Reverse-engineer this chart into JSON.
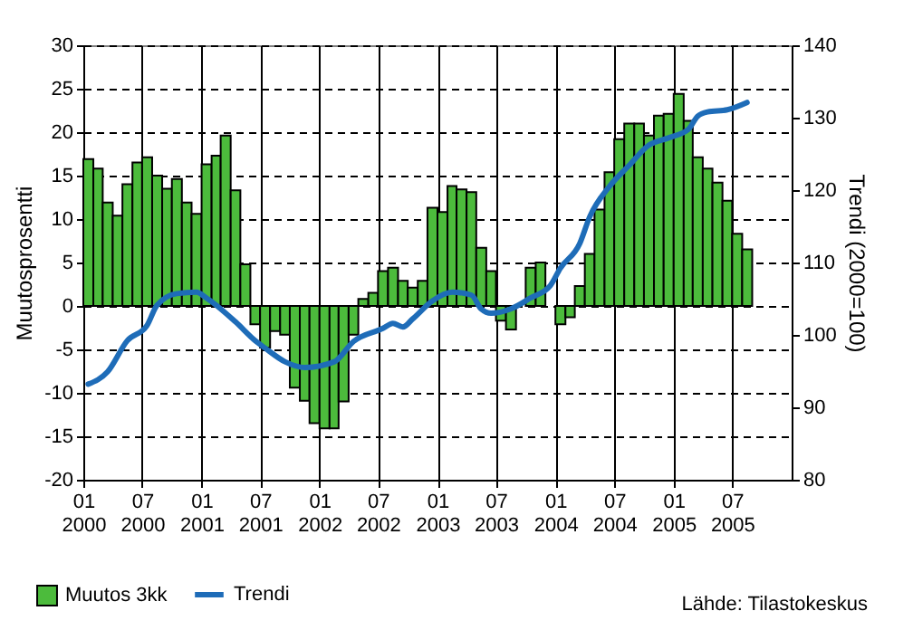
{
  "chart_data": {
    "type": "bar",
    "ylabel": "Muutosprosentti",
    "y2label": "Trendi (2000=100)",
    "annotations": [
      "Lähde: Tilastokeskus"
    ],
    "x": [
      "2000-01",
      "2000-02",
      "2000-03",
      "2000-04",
      "2000-05",
      "2000-06",
      "2000-07",
      "2000-08",
      "2000-09",
      "2000-10",
      "2000-11",
      "2000-12",
      "2001-01",
      "2001-02",
      "2001-03",
      "2001-04",
      "2001-05",
      "2001-06",
      "2001-07",
      "2001-08",
      "2001-09",
      "2001-10",
      "2001-11",
      "2001-12",
      "2002-01",
      "2002-02",
      "2002-03",
      "2002-04",
      "2002-05",
      "2002-06",
      "2002-07",
      "2002-08",
      "2002-09",
      "2002-10",
      "2002-11",
      "2002-12",
      "2003-01",
      "2003-02",
      "2003-03",
      "2003-04",
      "2003-05",
      "2003-06",
      "2003-07",
      "2003-08",
      "2003-09",
      "2003-10",
      "2003-11",
      "2003-12",
      "2004-01",
      "2004-02",
      "2004-03",
      "2004-04",
      "2004-05",
      "2004-06",
      "2004-07",
      "2004-08",
      "2004-09",
      "2004-10",
      "2004-11",
      "2004-12",
      "2005-01",
      "2005-02",
      "2005-03",
      "2005-04",
      "2005-05",
      "2005-06",
      "2005-07",
      "2005-08"
    ],
    "series": [
      {
        "name": "Muutos 3kk",
        "color": "#4cbb3c",
        "values": [
          16.9,
          15.8,
          11.9,
          10.4,
          14.0,
          16.5,
          17.1,
          15.0,
          13.5,
          14.6,
          11.9,
          10.6,
          16.3,
          17.3,
          19.6,
          13.3,
          4.8,
          -2.1,
          -4.8,
          -2.9,
          -3.3,
          -9.4,
          -10.9,
          -13.5,
          -14.1,
          -14.1,
          -11.0,
          -3.3,
          0.8,
          1.5,
          4.0,
          4.4,
          2.9,
          2.1,
          2.9,
          11.3,
          10.8,
          13.8,
          13.4,
          13.1,
          6.7,
          4.0,
          -1.7,
          -2.7,
          null,
          4.4,
          5.0,
          null,
          -2.1,
          -1.3,
          2.3,
          6.0,
          11.1,
          15.4,
          19.2,
          21.0,
          21.0,
          19.6,
          21.9,
          22.1,
          24.4,
          21.3,
          17.1,
          15.8,
          14.2,
          12.1,
          8.3,
          6.5
        ]
      },
      {
        "name": "Trendi",
        "type": "line",
        "axis": "y2",
        "color": "#1e6cb8",
        "x": [
          "2000-01-16",
          "2000-03-16",
          "2000-05-16",
          "2000-07-16",
          "2000-08-16",
          "2000-10-16",
          "2000-12-16",
          "2001-01-16",
          "2001-04-16",
          "2001-06-16",
          "2001-07-16",
          "2001-09-16",
          "2001-11-16",
          "2002-02-16",
          "2002-04-16",
          "2002-07-16",
          "2002-08-16",
          "2002-09-16",
          "2002-10-16",
          "2002-12-16",
          "2003-02-16",
          "2003-04-16",
          "2003-05-16",
          "2003-06-16",
          "2003-08-16",
          "2003-10-16",
          "2003-12-16",
          "2004-01-16",
          "2004-03-16",
          "2004-04-16",
          "2004-06-16",
          "2004-08-16",
          "2004-10-16",
          "2004-12-16",
          "2005-02-16",
          "2005-03-16",
          "2005-04-16",
          "2005-06-16",
          "2005-08-16"
        ],
        "values": [
          93.2,
          94.9,
          99.2,
          101.3,
          104.1,
          105.7,
          105.9,
          105.1,
          101.8,
          99.2,
          98.2,
          96.3,
          95.5,
          96.3,
          99.1,
          100.9,
          101.6,
          101.1,
          102.2,
          104.7,
          105.9,
          105.5,
          103.6,
          103.0,
          103.6,
          105.1,
          106.8,
          109.2,
          112.6,
          116.3,
          120.5,
          123.4,
          126.2,
          127.2,
          128.4,
          130.2,
          130.8,
          131.1,
          132.1
        ]
      }
    ],
    "xlim": [
      "2000-01",
      "2006-01"
    ],
    "xticks": [
      {
        "value": "2000-01",
        "label": "01\n2000"
      },
      {
        "value": "2000-07",
        "label": "07\n2000"
      },
      {
        "value": "2001-01",
        "label": "01\n2001"
      },
      {
        "value": "2001-07",
        "label": "07\n2001"
      },
      {
        "value": "2002-01",
        "label": "01\n2002"
      },
      {
        "value": "2002-07",
        "label": "07\n2002"
      },
      {
        "value": "2003-01",
        "label": "01\n2003"
      },
      {
        "value": "2003-07",
        "label": "07\n2003"
      },
      {
        "value": "2004-01",
        "label": "01\n2004"
      },
      {
        "value": "2004-07",
        "label": "07\n2004"
      },
      {
        "value": "2005-01",
        "label": "01\n2005"
      },
      {
        "value": "2005-07",
        "label": "07\n2005"
      }
    ],
    "ylim": [
      -20,
      30
    ],
    "yticks": [
      -20,
      -15,
      -10,
      -5,
      0,
      5,
      10,
      15,
      20,
      25,
      30
    ],
    "y2lim": [
      80,
      140
    ],
    "y2ticks": [
      80,
      90,
      100,
      110,
      120,
      130,
      140
    ],
    "grid": true,
    "legend": "bottom left"
  }
}
